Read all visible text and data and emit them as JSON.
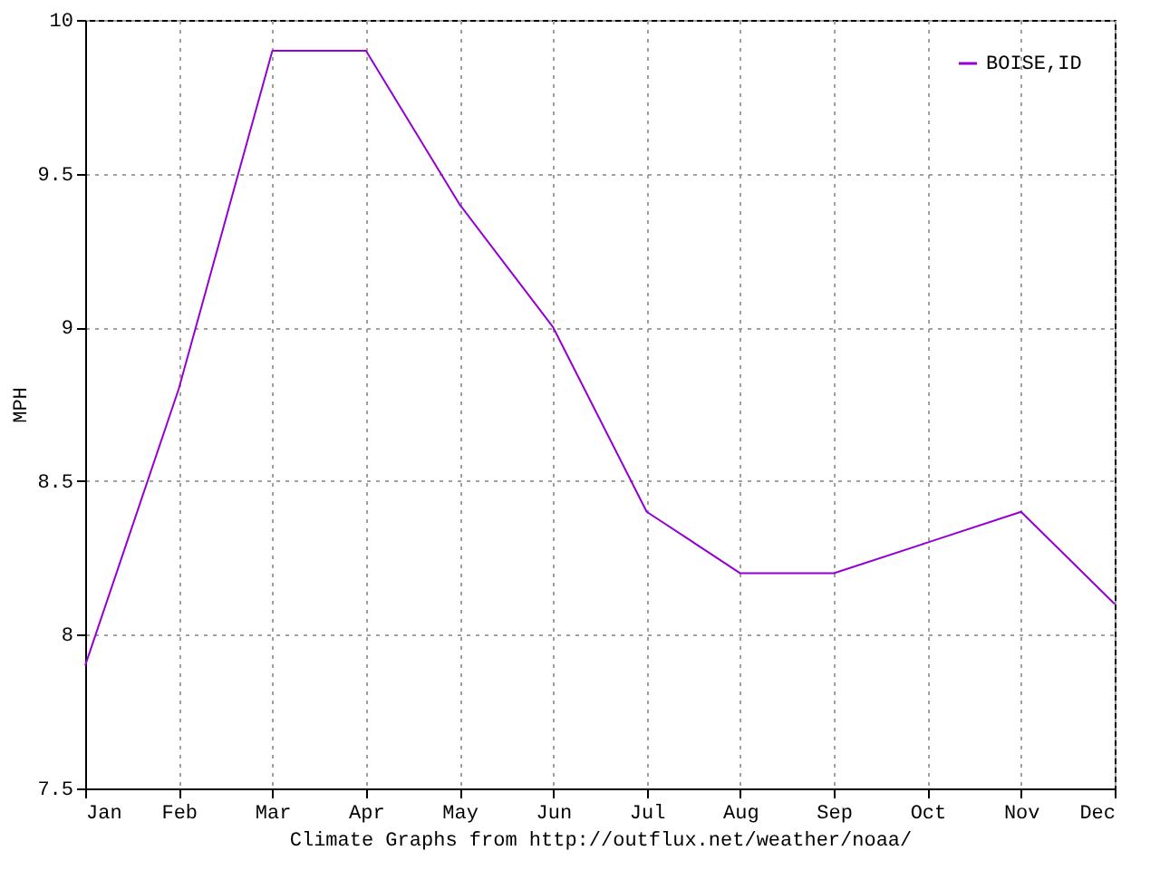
{
  "chart_data": {
    "type": "line",
    "xlabel": "Climate Graphs from http://outflux.net/weather/noaa/",
    "ylabel": "MPH",
    "categories": [
      "Jan",
      "Feb",
      "Mar",
      "Apr",
      "May",
      "Jun",
      "Jul",
      "Aug",
      "Sep",
      "Oct",
      "Nov",
      "Dec"
    ],
    "series": [
      {
        "name": "BOISE,ID",
        "color": "#9400d3",
        "values": [
          7.9,
          8.8,
          9.9,
          9.9,
          9.4,
          9.0,
          8.4,
          8.2,
          8.2,
          8.3,
          8.4,
          8.1
        ]
      }
    ],
    "ylim": [
      7.5,
      10
    ],
    "yticks": [
      7.5,
      8,
      8.5,
      9,
      9.5,
      10
    ],
    "grid": true,
    "legend": "top right",
    "marker": "none",
    "line_style": "solid"
  }
}
